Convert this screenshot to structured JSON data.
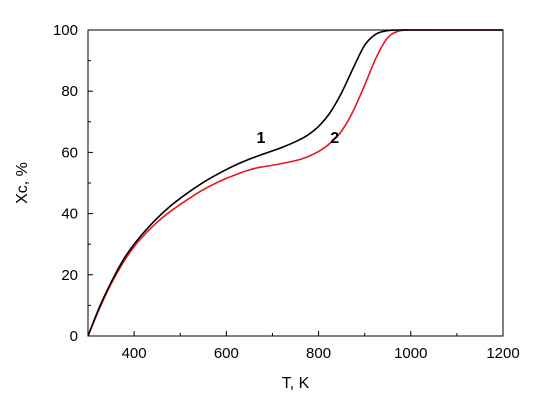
{
  "chart_data": {
    "type": "line",
    "xlabel": "T, K",
    "ylabel": "Xc, %",
    "xlim": [
      300,
      1200
    ],
    "ylim": [
      0,
      100
    ],
    "xticks": [
      400,
      600,
      800,
      1000,
      1200
    ],
    "yticks": [
      0,
      20,
      40,
      60,
      80,
      100
    ],
    "grid": false,
    "series": [
      {
        "label": "1",
        "color": "#000000",
        "x": [
          300,
          325,
          350,
          375,
          400,
          425,
          450,
          475,
          500,
          525,
          550,
          575,
          600,
          625,
          650,
          675,
          700,
          725,
          750,
          775,
          800,
          825,
          850,
          875,
          900,
          925,
          950,
          975,
          1000,
          1050,
          1100,
          1150,
          1200
        ],
        "y": [
          0,
          9.5,
          17.5,
          24.5,
          30,
          34.5,
          38.5,
          42,
          45,
          47.7,
          50.2,
          52.4,
          54.4,
          56.2,
          57.8,
          59.2,
          60.5,
          61.9,
          63.5,
          65.5,
          68.5,
          73,
          79.5,
          87.5,
          95,
          98.7,
          99.8,
          100,
          100,
          100,
          100,
          100,
          100
        ]
      },
      {
        "label": "2",
        "color": "#e8171e",
        "x": [
          300,
          325,
          350,
          375,
          400,
          425,
          450,
          475,
          500,
          525,
          550,
          575,
          600,
          625,
          650,
          675,
          700,
          725,
          750,
          775,
          800,
          825,
          850,
          875,
          900,
          925,
          950,
          975,
          1000,
          1050,
          1100,
          1150,
          1200
        ],
        "y": [
          0,
          9,
          17,
          23.7,
          29.2,
          33.5,
          37.2,
          40.3,
          43,
          45.5,
          47.8,
          49.8,
          51.5,
          53,
          54.3,
          55.2,
          55.8,
          56.5,
          57.3,
          58.5,
          60.3,
          63,
          67,
          73.5,
          82,
          91,
          97.5,
          99.7,
          100,
          100,
          100,
          100,
          100
        ]
      }
    ]
  }
}
